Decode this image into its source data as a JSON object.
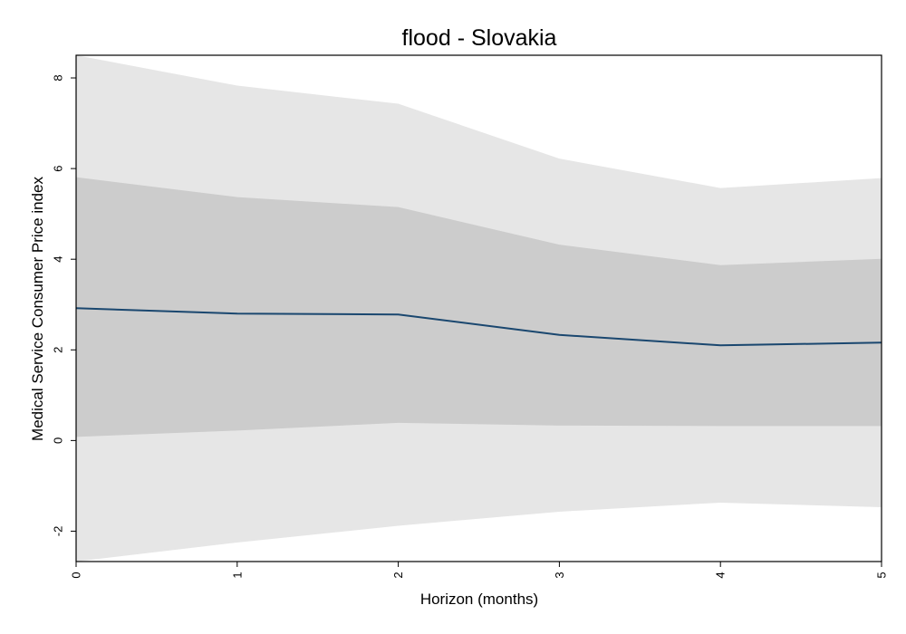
{
  "chart_data": {
    "type": "line",
    "title": "flood - Slovakia",
    "xlabel": "Horizon (months)",
    "ylabel": "Medical Service Consumer Price index",
    "x": [
      0,
      1,
      2,
      3,
      4,
      5
    ],
    "xlim": [
      0,
      5
    ],
    "ylim": [
      -2.67,
      8.5
    ],
    "xticks": [
      "0",
      "1",
      "2",
      "3",
      "4",
      "5"
    ],
    "yticks": [
      "-2",
      "0",
      "2",
      "4",
      "6",
      "8"
    ],
    "grid": false,
    "legend": "none",
    "series": [
      {
        "role": "outer-band-upper",
        "values": [
          8.5,
          7.83,
          7.43,
          6.22,
          5.57,
          5.79
        ]
      },
      {
        "role": "outer-band-lower",
        "values": [
          -2.67,
          -2.25,
          -1.88,
          -1.57,
          -1.37,
          -1.47
        ]
      },
      {
        "role": "inner-band-upper",
        "values": [
          5.81,
          5.37,
          5.15,
          4.32,
          3.87,
          4.01
        ]
      },
      {
        "role": "inner-band-lower",
        "values": [
          0.08,
          0.22,
          0.39,
          0.33,
          0.32,
          0.32
        ]
      },
      {
        "role": "point-estimate",
        "values": [
          2.92,
          2.8,
          2.78,
          2.33,
          2.1,
          2.16
        ]
      }
    ],
    "colors": {
      "outer_band": "#e6e6e6",
      "inner_band": "#cccccc",
      "line": "#1a476f",
      "frame": "#000000"
    }
  }
}
